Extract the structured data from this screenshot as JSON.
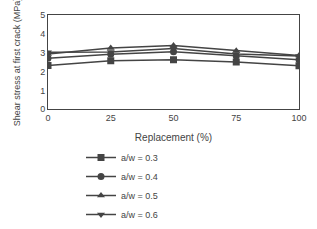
{
  "chart_data": {
    "type": "line",
    "xlabel": "Replacement (%)",
    "ylabel": "Shear stress at first crack (MPa)",
    "x": [
      0,
      25,
      50,
      75,
      100
    ],
    "series": [
      {
        "name": "a/w = 0.3",
        "color": "#444444",
        "marker": "square",
        "values": [
          2.32,
          2.57,
          2.62,
          2.5,
          2.3
        ]
      },
      {
        "name": "a/w = 0.4",
        "color": "#444444",
        "marker": "circle",
        "values": [
          2.7,
          2.92,
          3.05,
          2.83,
          2.62
        ]
      },
      {
        "name": "a/w = 0.5",
        "color": "#444444",
        "marker": "triangle-up",
        "values": [
          2.93,
          3.25,
          3.38,
          3.1,
          2.85
        ]
      },
      {
        "name": "a/w = 0.6",
        "color": "#444444",
        "marker": "triangle-down",
        "values": [
          3.02,
          3.03,
          3.22,
          2.93,
          2.83
        ]
      }
    ],
    "xlim": [
      0,
      100
    ],
    "xticks": [
      0,
      25,
      50,
      75,
      100
    ],
    "ylim": [
      0,
      5
    ],
    "yticks": [
      0,
      1,
      2,
      3,
      4,
      5
    ],
    "grid": false,
    "legend": "bottom"
  }
}
